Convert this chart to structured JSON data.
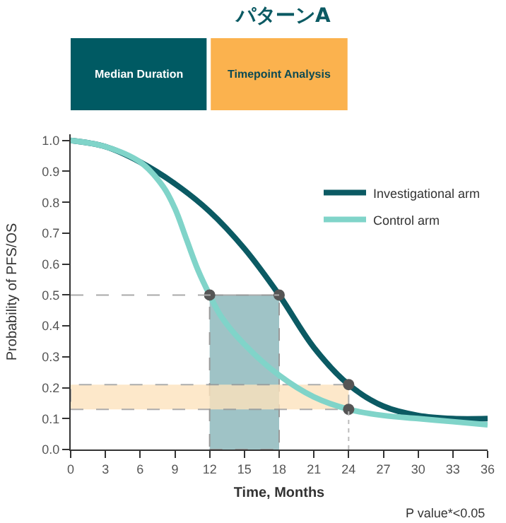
{
  "chart_data": {
    "type": "line",
    "title": "パターンA",
    "xlabel": "Time, Months",
    "ylabel": "Probability of PFS/OS",
    "annotations": [
      "Median Duration",
      "Timepoint Analysis",
      "P value*<0.05"
    ],
    "series": [
      {
        "name": "Investigational arm",
        "color": "#0b5a63",
        "x": [
          0,
          3,
          6,
          9,
          12,
          15,
          18,
          21,
          24,
          27,
          30,
          33,
          36
        ],
        "values": [
          1.0,
          0.98,
          0.93,
          0.86,
          0.77,
          0.65,
          0.5,
          0.33,
          0.21,
          0.14,
          0.11,
          0.1,
          0.1
        ]
      },
      {
        "name": "Control arm",
        "color": "#80d4c9",
        "x": [
          0,
          3,
          6,
          8,
          9,
          10,
          11,
          12,
          13,
          15,
          18,
          21,
          24,
          27,
          30,
          33,
          36
        ],
        "values": [
          1.0,
          0.98,
          0.93,
          0.85,
          0.78,
          0.68,
          0.58,
          0.5,
          0.43,
          0.34,
          0.24,
          0.17,
          0.13,
          0.11,
          0.1,
          0.09,
          0.08
        ]
      },
      {
        "type": "scatter",
        "color": "#555555",
        "marker": "circle",
        "x": [
          12,
          18,
          24,
          24
        ],
        "values": [
          0.5,
          0.5,
          0.21,
          0.13
        ]
      }
    ],
    "bands": [
      {
        "axis": "x",
        "from": 12,
        "to": 18,
        "color": "#9fc3c6"
      },
      {
        "axis": "y",
        "from": 0.13,
        "to": 0.21,
        "color": "#fde3bd"
      }
    ],
    "ref_lines": [
      {
        "axis": "y",
        "value": 0.5,
        "color": "#aaaaaa",
        "line_style": "dashed"
      },
      {
        "axis": "x",
        "value": 24,
        "color": "#bbbbbb",
        "line_style": "dotted"
      }
    ],
    "xlim": [
      0,
      36
    ],
    "xticks": [
      0,
      3,
      6,
      9,
      12,
      15,
      18,
      21,
      24,
      27,
      30,
      33,
      36
    ],
    "ylim": [
      0,
      1.02
    ],
    "yticks": [
      {
        "value": 0,
        "label": "0.0"
      },
      0.1,
      0.2,
      0.3,
      0.4,
      0.5,
      0.6,
      0.7,
      0.8,
      0.9,
      {
        "value": 1,
        "label": "1.0"
      }
    ],
    "grid": false,
    "legend": "top right",
    "line_style": "solid"
  }
}
